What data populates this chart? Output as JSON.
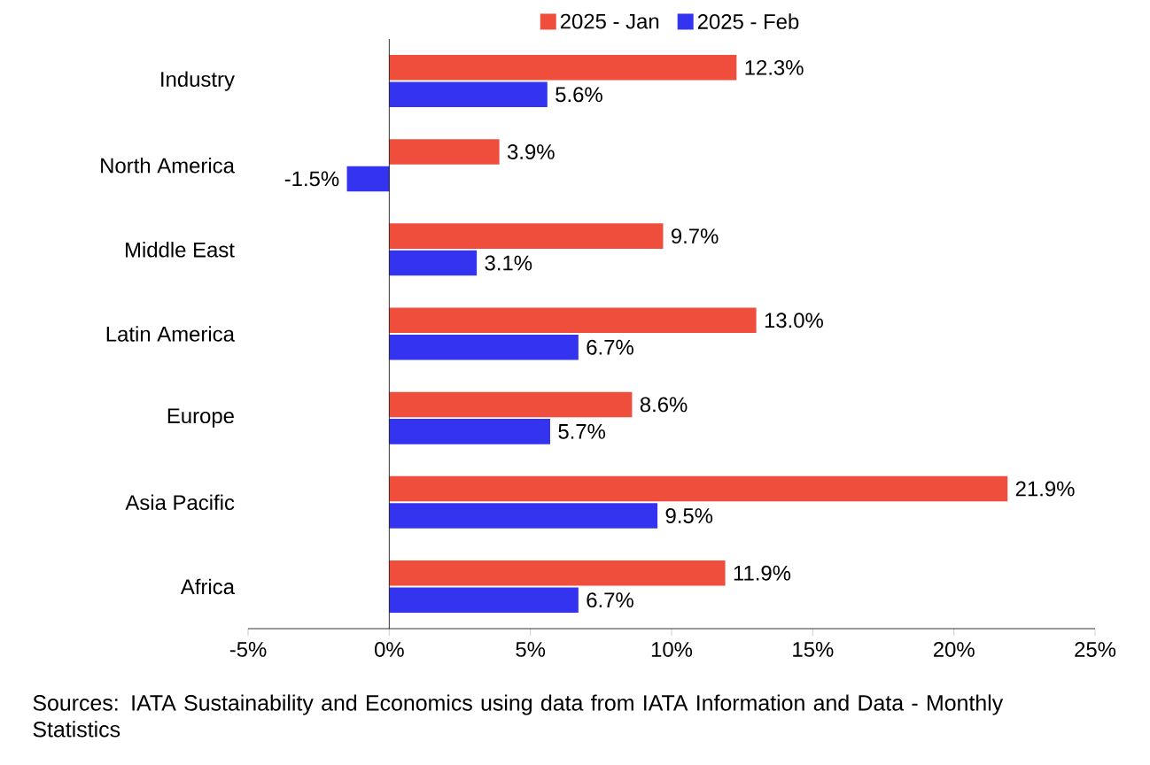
{
  "chart_data": {
    "type": "bar",
    "orientation": "horizontal",
    "categories": [
      "Industry",
      "North America",
      "Middle East",
      "Latin America",
      "Europe",
      "Asia Pacific",
      "Africa"
    ],
    "series": [
      {
        "name": "2025 - Jan",
        "color": "#f04e3c",
        "values": [
          12.3,
          3.9,
          9.7,
          13.0,
          8.6,
          21.9,
          11.9
        ],
        "value_labels": [
          "12.3%",
          "3.9%",
          "9.7%",
          "13.0%",
          "8.6%",
          "21.9%",
          "11.9%"
        ]
      },
      {
        "name": "2025 - Feb",
        "color": "#3434f0",
        "values": [
          5.6,
          -1.5,
          3.1,
          6.7,
          5.7,
          9.5,
          6.7
        ],
        "value_labels": [
          "5.6%",
          "-1.5%",
          "3.1%",
          "6.7%",
          "5.7%",
          "9.5%",
          "6.7%"
        ]
      }
    ],
    "xlim": [
      -5,
      25
    ],
    "xticks": [
      {
        "value": -5,
        "label": "-5%"
      },
      {
        "value": 0,
        "label": "0%"
      },
      {
        "value": 5,
        "label": "5%"
      },
      {
        "value": 10,
        "label": "10%"
      },
      {
        "value": 15,
        "label": "15%"
      },
      {
        "value": 20,
        "label": "20%"
      },
      {
        "value": 25,
        "label": "25%"
      }
    ],
    "legend": "top",
    "annotations": [
      "Sources: IATA Sustainability and Economics using data from IATA Information and Data - Monthly Statistics"
    ]
  }
}
